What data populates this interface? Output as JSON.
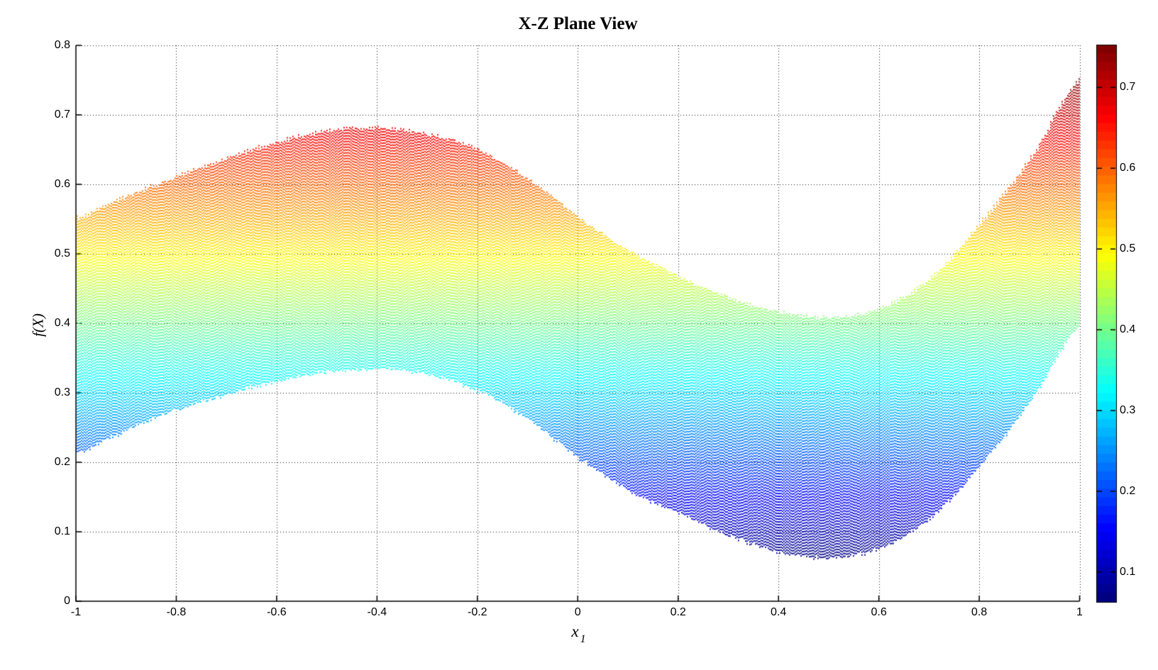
{
  "chart_data": {
    "type": "scatter",
    "render_style": "dotted-mesh-band (3D mesh surface seen edge-on)",
    "title": "X-Z Plane View",
    "xlabel": "x_1",
    "xlabel_base": "x",
    "xlabel_sub": "1",
    "ylabel": "f(X)",
    "xlim": [
      -1,
      1
    ],
    "ylim": [
      0,
      0.8
    ],
    "grid": true,
    "x_tick_labels": [
      "-1",
      "-0.8",
      "-0.6",
      "-0.4",
      "-0.2",
      "0",
      "0.2",
      "0.4",
      "0.6",
      "0.8",
      "1"
    ],
    "x_tick_values": [
      -1,
      -0.8,
      -0.6,
      -0.4,
      -0.2,
      0,
      0.2,
      0.4,
      0.6,
      0.8,
      1
    ],
    "y_tick_labels": [
      "0",
      "0.1",
      "0.2",
      "0.3",
      "0.4",
      "0.5",
      "0.6",
      "0.7",
      "0.8"
    ],
    "y_tick_values": [
      0,
      0.1,
      0.2,
      0.3,
      0.4,
      0.5,
      0.6,
      0.7,
      0.8
    ],
    "band": {
      "description": "f(X) band: for each x1 the surface spans lower..upper envelope (x2 collapsed in X-Z view); point color encodes f(X) via jet colormap",
      "x": [
        -1.0,
        -0.9,
        -0.8,
        -0.7,
        -0.6,
        -0.5,
        -0.4,
        -0.3,
        -0.2,
        -0.1,
        0.0,
        0.1,
        0.2,
        0.3,
        0.4,
        0.5,
        0.6,
        0.7,
        0.8,
        0.9,
        1.0
      ],
      "upper": [
        0.553,
        0.584,
        0.612,
        0.639,
        0.662,
        0.678,
        0.682,
        0.673,
        0.651,
        0.608,
        0.553,
        0.505,
        0.468,
        0.437,
        0.417,
        0.409,
        0.422,
        0.465,
        0.545,
        0.638,
        0.753
      ],
      "lower": [
        0.215,
        0.248,
        0.276,
        0.299,
        0.318,
        0.331,
        0.335,
        0.327,
        0.303,
        0.262,
        0.207,
        0.16,
        0.127,
        0.095,
        0.071,
        0.063,
        0.077,
        0.12,
        0.196,
        0.29,
        0.398
      ],
      "f_min": 0.063,
      "f_max": 0.753
    },
    "colorbar": {
      "colormap": "jet",
      "cmin": 0.063,
      "cmax": 0.753,
      "tick_labels": [
        "0.1",
        "0.2",
        "0.3",
        "0.4",
        "0.5",
        "0.6",
        "0.7"
      ],
      "tick_values": [
        0.1,
        0.2,
        0.3,
        0.4,
        0.5,
        0.6,
        0.7
      ]
    },
    "colors": {
      "background": "#ffffff",
      "axis": "#000000",
      "grid": "#000000",
      "text": "#000000"
    }
  }
}
